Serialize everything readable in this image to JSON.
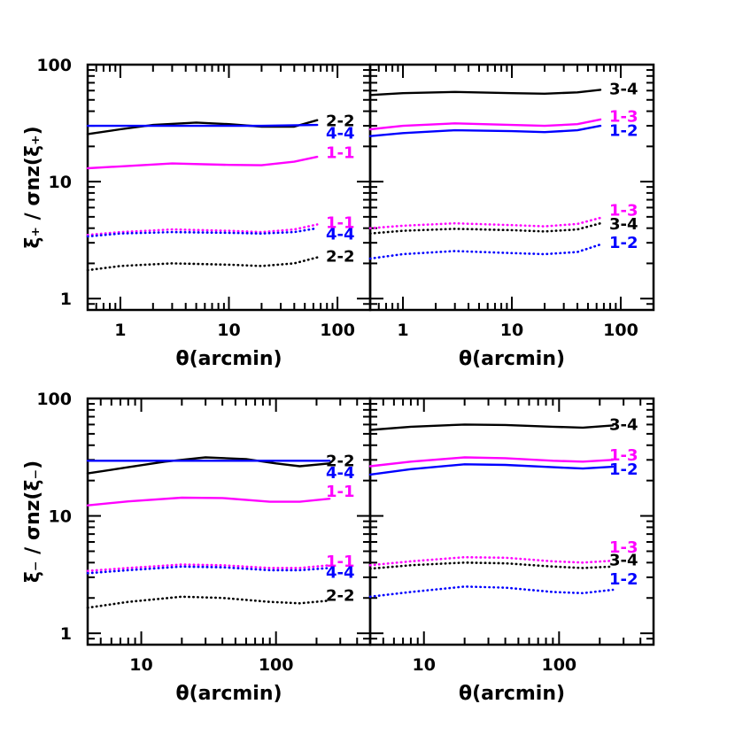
{
  "chart_data": [
    {
      "panel": "top-left",
      "type": "line",
      "xscale": "log",
      "yscale": "log",
      "xlim": [
        0.5,
        200
      ],
      "ylim": [
        0.8,
        100
      ],
      "xticks": [
        "1",
        "10",
        "100"
      ],
      "yticks": [
        "1",
        "10",
        "100"
      ],
      "show_x_tick_labels": true,
      "show_y_tick_labels": true,
      "xlabel": "θ(arcmin)",
      "ylabel": "ξ₊ / σnz(ξ₊)",
      "series": [
        {
          "name": "2-2",
          "color": "#000000",
          "style": "solid",
          "x": [
            0.5,
            1,
            2,
            5,
            10,
            20,
            40,
            65
          ],
          "y": [
            25.5,
            28,
            30.5,
            32,
            31,
            29.5,
            29.5,
            33.5
          ]
        },
        {
          "name": "4-4",
          "color": "#0000ff",
          "style": "solid",
          "x": [
            0.5,
            1,
            5,
            20,
            65
          ],
          "y": [
            30,
            30,
            30,
            30,
            30.5
          ]
        },
        {
          "name": "1-1",
          "color": "#ff00ff",
          "style": "solid",
          "x": [
            0.5,
            1,
            3,
            10,
            20,
            40,
            65
          ],
          "y": [
            13,
            13.5,
            14.3,
            13.9,
            13.8,
            14.8,
            16.3
          ]
        },
        {
          "name": "1-1",
          "color": "#ff00ff",
          "style": "dotted",
          "x": [
            0.5,
            1,
            3,
            10,
            20,
            40,
            65
          ],
          "y": [
            3.5,
            3.7,
            3.9,
            3.8,
            3.7,
            3.9,
            4.3
          ]
        },
        {
          "name": "4-4",
          "color": "#0000ff",
          "style": "dotted",
          "x": [
            0.5,
            1,
            3,
            10,
            20,
            40,
            65
          ],
          "y": [
            3.4,
            3.6,
            3.7,
            3.65,
            3.6,
            3.7,
            4.0
          ]
        },
        {
          "name": "2-2",
          "color": "#000000",
          "style": "dotted",
          "x": [
            0.5,
            1,
            3,
            10,
            20,
            40,
            65
          ],
          "y": [
            1.75,
            1.9,
            2.0,
            1.95,
            1.9,
            2.0,
            2.25
          ]
        }
      ],
      "labels": [
        {
          "text": "2-2",
          "color": "#000000",
          "y": 33
        },
        {
          "text": "4-4",
          "color": "#0000ff",
          "y": 25.8
        },
        {
          "text": "1-1",
          "color": "#ff00ff",
          "y": 17.6
        },
        {
          "text": "1-1",
          "color": "#ff00ff",
          "y": 4.45
        },
        {
          "text": "4-4",
          "color": "#0000ff",
          "y": 3.55
        },
        {
          "text": "2-2",
          "color": "#000000",
          "y": 2.3
        }
      ]
    },
    {
      "panel": "top-right",
      "type": "line",
      "xscale": "log",
      "yscale": "log",
      "xlim": [
        0.5,
        200
      ],
      "ylim": [
        0.8,
        100
      ],
      "xticks": [
        "1",
        "10",
        "100"
      ],
      "yticks": [],
      "show_x_tick_labels": true,
      "show_y_tick_labels": false,
      "xlabel": "θ(arcmin)",
      "ylabel": "",
      "series": [
        {
          "name": "3-4",
          "color": "#000000",
          "style": "solid",
          "x": [
            0.5,
            1,
            3,
            10,
            20,
            40,
            65
          ],
          "y": [
            55,
            57,
            58.5,
            57,
            56.5,
            58,
            61
          ]
        },
        {
          "name": "1-3",
          "color": "#ff00ff",
          "style": "solid",
          "x": [
            0.5,
            1,
            3,
            10,
            20,
            40,
            65
          ],
          "y": [
            28,
            30,
            31.5,
            30.5,
            30,
            31,
            34
          ]
        },
        {
          "name": "1-2",
          "color": "#0000ff",
          "style": "solid",
          "x": [
            0.5,
            1,
            3,
            10,
            20,
            40,
            65
          ],
          "y": [
            24.5,
            26,
            27.5,
            27,
            26.5,
            27.5,
            30
          ]
        },
        {
          "name": "1-3",
          "color": "#ff00ff",
          "style": "dotted",
          "x": [
            0.5,
            1,
            3,
            10,
            20,
            40,
            65
          ],
          "y": [
            4.0,
            4.2,
            4.4,
            4.25,
            4.15,
            4.35,
            4.9
          ]
        },
        {
          "name": "3-4",
          "color": "#000000",
          "style": "dotted",
          "x": [
            0.5,
            1,
            3,
            10,
            20,
            40,
            65
          ],
          "y": [
            3.6,
            3.8,
            3.95,
            3.85,
            3.75,
            3.9,
            4.4
          ]
        },
        {
          "name": "1-2",
          "color": "#0000ff",
          "style": "dotted",
          "x": [
            0.5,
            1,
            3,
            10,
            20,
            40,
            65
          ],
          "y": [
            2.2,
            2.4,
            2.55,
            2.45,
            2.4,
            2.5,
            2.9
          ]
        }
      ],
      "labels": [
        {
          "text": "3-4",
          "color": "#000000",
          "y": 62
        },
        {
          "text": "1-3",
          "color": "#ff00ff",
          "y": 36
        },
        {
          "text": "1-2",
          "color": "#0000ff",
          "y": 27.3
        },
        {
          "text": "1-3",
          "color": "#ff00ff",
          "y": 5.7
        },
        {
          "text": "3-4",
          "color": "#000000",
          "y": 4.35
        },
        {
          "text": "1-2",
          "color": "#0000ff",
          "y": 3.0
        }
      ]
    },
    {
      "panel": "bottom-left",
      "type": "line",
      "xscale": "log",
      "yscale": "log",
      "xlim": [
        4,
        500
      ],
      "ylim": [
        0.8,
        100
      ],
      "xticks": [
        "10",
        "100"
      ],
      "yticks": [
        "1",
        "10",
        "100"
      ],
      "show_x_tick_labels": true,
      "show_y_tick_labels": true,
      "xlabel": "θ(arcmin)",
      "ylabel": "ξ₋ / σnz(ξ₋)",
      "series": [
        {
          "name": "2-2",
          "color": "#000000",
          "style": "solid",
          "x": [
            4,
            8,
            15,
            30,
            60,
            100,
            150,
            250
          ],
          "y": [
            23,
            26,
            29,
            31.5,
            30.5,
            28,
            26.5,
            28
          ]
        },
        {
          "name": "4-4",
          "color": "#0000ff",
          "style": "solid",
          "x": [
            4,
            10,
            50,
            250
          ],
          "y": [
            29.5,
            29.5,
            29.5,
            29.5
          ]
        },
        {
          "name": "1-1",
          "color": "#ff00ff",
          "style": "solid",
          "x": [
            4,
            8,
            20,
            40,
            90,
            150,
            250
          ],
          "y": [
            12.3,
            13.3,
            14.3,
            14.2,
            13.2,
            13.2,
            14
          ]
        },
        {
          "name": "1-1",
          "color": "#ff00ff",
          "style": "dotted",
          "x": [
            4,
            8,
            20,
            40,
            90,
            150,
            250
          ],
          "y": [
            3.4,
            3.6,
            3.85,
            3.8,
            3.6,
            3.6,
            3.8
          ]
        },
        {
          "name": "4-4",
          "color": "#0000ff",
          "style": "dotted",
          "x": [
            4,
            8,
            20,
            40,
            90,
            150,
            250
          ],
          "y": [
            3.25,
            3.45,
            3.7,
            3.65,
            3.45,
            3.45,
            3.6
          ]
        },
        {
          "name": "2-2",
          "color": "#000000",
          "style": "dotted",
          "x": [
            4,
            8,
            20,
            40,
            90,
            150,
            250
          ],
          "y": [
            1.65,
            1.85,
            2.05,
            2.0,
            1.85,
            1.8,
            1.9
          ]
        }
      ],
      "labels": [
        {
          "text": "2-2",
          "color": "#000000",
          "y": 29.5
        },
        {
          "text": "4-4",
          "color": "#0000ff",
          "y": 23.3
        },
        {
          "text": "1-1",
          "color": "#ff00ff",
          "y": 16.2
        },
        {
          "text": "1-1",
          "color": "#ff00ff",
          "y": 4.1
        },
        {
          "text": "4-4",
          "color": "#0000ff",
          "y": 3.3
        },
        {
          "text": "2-2",
          "color": "#000000",
          "y": 2.1
        }
      ]
    },
    {
      "panel": "bottom-right",
      "type": "line",
      "xscale": "log",
      "yscale": "log",
      "xlim": [
        4,
        500
      ],
      "ylim": [
        0.8,
        100
      ],
      "xticks": [
        "10",
        "100"
      ],
      "yticks": [],
      "show_x_tick_labels": true,
      "show_y_tick_labels": false,
      "xlabel": "θ(arcmin)",
      "ylabel": "",
      "series": [
        {
          "name": "3-4",
          "color": "#000000",
          "style": "solid",
          "x": [
            4,
            8,
            20,
            40,
            90,
            150,
            250
          ],
          "y": [
            54,
            57.5,
            60,
            59.5,
            57.5,
            56.5,
            59
          ]
        },
        {
          "name": "1-3",
          "color": "#ff00ff",
          "style": "solid",
          "x": [
            4,
            8,
            20,
            40,
            90,
            150,
            250
          ],
          "y": [
            26.5,
            29,
            31.5,
            31,
            29.5,
            29,
            30
          ]
        },
        {
          "name": "1-2",
          "color": "#0000ff",
          "style": "solid",
          "x": [
            4,
            8,
            20,
            40,
            90,
            150,
            250
          ],
          "y": [
            22.5,
            25,
            27.5,
            27.2,
            26,
            25.3,
            26.2
          ]
        },
        {
          "name": "1-3",
          "color": "#ff00ff",
          "style": "dotted",
          "x": [
            4,
            8,
            20,
            40,
            90,
            150,
            250
          ],
          "y": [
            3.8,
            4.1,
            4.45,
            4.4,
            4.1,
            4.0,
            4.15
          ]
        },
        {
          "name": "3-4",
          "color": "#000000",
          "style": "dotted",
          "x": [
            4,
            8,
            20,
            40,
            90,
            150,
            250
          ],
          "y": [
            3.55,
            3.8,
            4.0,
            3.95,
            3.7,
            3.6,
            3.7
          ]
        },
        {
          "name": "1-2",
          "color": "#0000ff",
          "style": "dotted",
          "x": [
            4,
            8,
            20,
            40,
            90,
            150,
            250
          ],
          "y": [
            2.05,
            2.25,
            2.5,
            2.45,
            2.25,
            2.2,
            2.35
          ]
        }
      ],
      "labels": [
        {
          "text": "3-4",
          "color": "#000000",
          "y": 60
        },
        {
          "text": "1-3",
          "color": "#ff00ff",
          "y": 33
        },
        {
          "text": "1-2",
          "color": "#0000ff",
          "y": 25
        },
        {
          "text": "1-3",
          "color": "#ff00ff",
          "y": 5.4
        },
        {
          "text": "3-4",
          "color": "#000000",
          "y": 4.2
        },
        {
          "text": "1-2",
          "color": "#0000ff",
          "y": 2.9
        }
      ]
    }
  ]
}
